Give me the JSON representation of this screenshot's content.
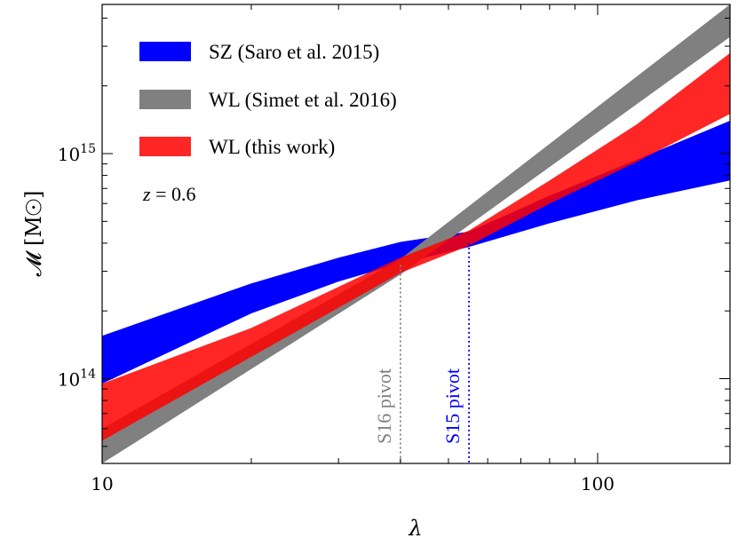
{
  "chart_data": {
    "type": "area",
    "xscale": "log",
    "yscale": "log",
    "xlim": [
      10,
      185
    ],
    "ylim": [
      42000000000000.0,
      4600000000000000.0
    ],
    "xlabel": "λ",
    "ylabel": "𝓜 [M☉]",
    "xticks": [
      {
        "value": 10,
        "label": "10"
      },
      {
        "value": 100,
        "label": "100"
      }
    ],
    "yticks": [
      {
        "value": 100000000000000.0,
        "base": "10",
        "exp": "14"
      },
      {
        "value": 1000000000000000.0,
        "base": "10",
        "exp": "15"
      }
    ],
    "annotation": {
      "text": "z = 0.6",
      "italic_part": "z",
      "rest": " = 0.6"
    },
    "legend_position": "top-left",
    "series": [
      {
        "name": "SZ (Saro et al. 2015)",
        "color": "#0000ff",
        "x": [
          10,
          20,
          30,
          40,
          55,
          80,
          120,
          185
        ],
        "lower": [
          95000000000000.0,
          195000000000000.0,
          270000000000000.0,
          325000000000000.0,
          385000000000000.0,
          490000000000000.0,
          620000000000000.0,
          760000000000000.0
        ],
        "upper": [
          155000000000000.0,
          265000000000000.0,
          345000000000000.0,
          405000000000000.0,
          450000000000000.0,
          650000000000000.0,
          940000000000000.0,
          1400000000000000.0
        ]
      },
      {
        "name": "WL (Simet et al. 2016)",
        "color": "#808080",
        "x": [
          10,
          40,
          185
        ],
        "lower": [
          42000000000000.0,
          290000000000000.0,
          3300000000000000.0
        ],
        "upper": [
          60000000000000.0,
          340000000000000.0,
          4600000000000000.0
        ]
      },
      {
        "name": "WL (this work)",
        "color": "#ff0000",
        "x": [
          10,
          20,
          40,
          55,
          80,
          120,
          185
        ],
        "lower": [
          53000000000000.0,
          125000000000000.0,
          295000000000000.0,
          390000000000000.0,
          600000000000000.0,
          920000000000000.0,
          1500000000000000.0
        ],
        "upper": [
          95000000000000.0,
          168000000000000.0,
          345000000000000.0,
          455000000000000.0,
          760000000000000.0,
          1350000000000000.0,
          2800000000000000.0
        ]
      }
    ],
    "pivots": [
      {
        "label": "S16 pivot",
        "x": 40,
        "y_top": 320000000000000.0,
        "color": "#808080"
      },
      {
        "label": "S15 pivot",
        "x": 55,
        "y_top": 400000000000000.0,
        "color": "#0000ff"
      }
    ]
  }
}
